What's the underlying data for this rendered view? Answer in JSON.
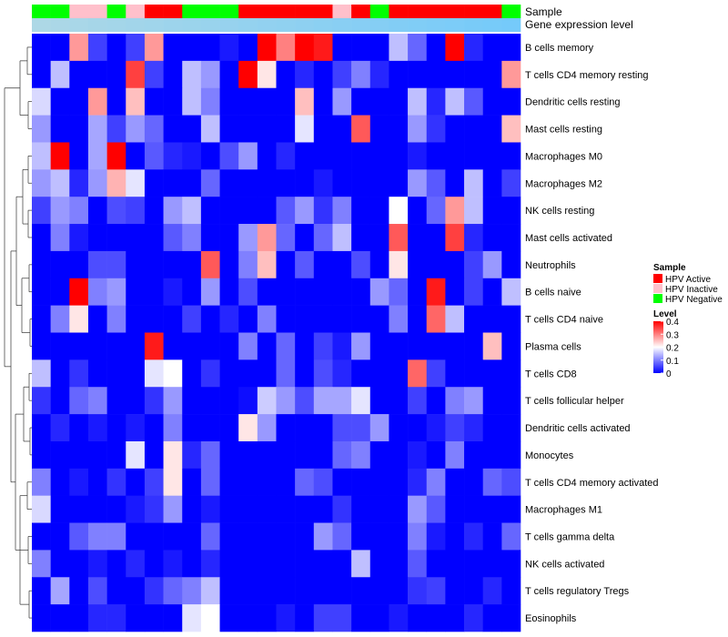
{
  "chart_data": {
    "type": "heatmap",
    "annotation_rows": [
      {
        "name": "Sample",
        "label": "Sample"
      },
      {
        "name": "Gene expression level",
        "label": "Gene expression level"
      }
    ],
    "sample_groups": [
      "Neg",
      "Neg",
      "Ina",
      "Ina",
      "Neg",
      "Ina",
      "Act",
      "Act",
      "Neg",
      "Neg",
      "Neg",
      "Act",
      "Act",
      "Act",
      "Act",
      "Act",
      "Ina",
      "Act",
      "Neg",
      "Act",
      "Act",
      "Act",
      "Act",
      "Act",
      "Act",
      "Neg"
    ],
    "sample_legend": {
      "title": "Sample",
      "entries": [
        {
          "key": "Act",
          "label": "HPV Active",
          "color": "#ff0000"
        },
        {
          "key": "Ina",
          "label": "HPV Inactive",
          "color": "#ffc0cb"
        },
        {
          "key": "Neg",
          "label": "HPV Negative",
          "color": "#00ff00"
        }
      ]
    },
    "level_legend": {
      "title": "Level",
      "ticks": [
        "0.4",
        "0.3",
        "0.2",
        "0.1",
        "0"
      ],
      "range": [
        0,
        0.4
      ]
    },
    "rows": [
      "B cells memory",
      "T cells CD4 memory resting",
      "Dendritic cells resting",
      "Mast cells resting",
      "Macrophages M0",
      "Macrophages M2",
      "NK cells resting",
      "Mast cells activated",
      "Neutrophils",
      "B cells naive",
      "T cells CD4 naive",
      "Plasma cells",
      "T cells CD8",
      "T cells follicular helper",
      "Dendritic cells activated",
      "Monocytes",
      "T cells CD4 memory activated",
      "Macrophages M1",
      "T cells gamma delta",
      "NK cells activated",
      "T cells regulatory  Tregs",
      "Eosinophils"
    ],
    "values": [
      [
        0.0,
        0.0,
        0.28,
        0.05,
        0.0,
        0.05,
        0.28,
        0.0,
        0.0,
        0.0,
        0.02,
        0.0,
        0.4,
        0.3,
        0.4,
        0.38,
        0.0,
        0.0,
        0.0,
        0.15,
        0.08,
        0.0,
        0.4,
        0.03,
        0.0,
        0.0
      ],
      [
        0.0,
        0.15,
        0.0,
        0.0,
        0.0,
        0.35,
        0.05,
        0.0,
        0.15,
        0.12,
        0.0,
        0.4,
        0.22,
        0.0,
        0.03,
        0.0,
        0.05,
        0.1,
        0.03,
        0.0,
        0.0,
        0.0,
        0.0,
        0.0,
        0.0,
        0.28
      ],
      [
        0.17,
        0.0,
        0.0,
        0.28,
        0.0,
        0.25,
        0.0,
        0.0,
        0.15,
        0.1,
        0.0,
        0.0,
        0.0,
        0.0,
        0.25,
        0.0,
        0.12,
        0.0,
        0.0,
        0.0,
        0.15,
        0.03,
        0.15,
        0.07,
        0.0,
        0.0
      ],
      [
        0.12,
        0.0,
        0.0,
        0.13,
        0.05,
        0.12,
        0.08,
        0.0,
        0.0,
        0.15,
        0.0,
        0.0,
        0.0,
        0.0,
        0.18,
        0.0,
        0.0,
        0.33,
        0.0,
        0.0,
        0.12,
        0.04,
        0.0,
        0.0,
        0.0,
        0.25
      ],
      [
        0.15,
        0.4,
        0.0,
        0.13,
        0.4,
        0.0,
        0.07,
        0.03,
        0.02,
        0.0,
        0.06,
        0.12,
        0.0,
        0.03,
        0.0,
        0.0,
        0.0,
        0.0,
        0.0,
        0.0,
        0.02,
        0.0,
        0.0,
        0.0,
        0.0,
        0.0
      ],
      [
        0.12,
        0.15,
        0.03,
        0.12,
        0.26,
        0.18,
        0.0,
        0.0,
        0.0,
        0.08,
        0.0,
        0.0,
        0.0,
        0.0,
        0.0,
        0.02,
        0.0,
        0.0,
        0.0,
        0.0,
        0.12,
        0.07,
        0.0,
        0.15,
        0.0,
        0.05
      ],
      [
        0.05,
        0.12,
        0.1,
        0.0,
        0.06,
        0.05,
        0.0,
        0.12,
        0.15,
        0.0,
        0.0,
        0.0,
        0.0,
        0.07,
        0.12,
        0.04,
        0.1,
        0.0,
        0.0,
        0.2,
        0.0,
        0.08,
        0.28,
        0.15,
        0.0,
        0.0
      ],
      [
        0.0,
        0.1,
        0.02,
        0.0,
        0.0,
        0.0,
        0.0,
        0.07,
        0.1,
        0.0,
        0.0,
        0.12,
        0.28,
        0.08,
        0.0,
        0.08,
        0.15,
        0.0,
        0.0,
        0.33,
        0.0,
        0.0,
        0.35,
        0.03,
        0.0,
        0.0
      ],
      [
        0.0,
        0.0,
        0.0,
        0.06,
        0.06,
        0.0,
        0.0,
        0.0,
        0.0,
        0.33,
        0.0,
        0.1,
        0.25,
        0.0,
        0.07,
        0.0,
        0.0,
        0.06,
        0.0,
        0.22,
        0.0,
        0.0,
        0.0,
        0.05,
        0.12,
        0.0
      ],
      [
        0.0,
        0.0,
        0.4,
        0.1,
        0.12,
        0.0,
        0.0,
        0.02,
        0.0,
        0.12,
        0.0,
        0.06,
        0.0,
        0.0,
        0.0,
        0.0,
        0.0,
        0.0,
        0.12,
        0.08,
        0.0,
        0.38,
        0.0,
        0.05,
        0.0,
        0.15
      ],
      [
        0.0,
        0.1,
        0.22,
        0.0,
        0.1,
        0.0,
        0.0,
        0.0,
        0.05,
        0.0,
        0.03,
        0.0,
        0.1,
        0.0,
        0.0,
        0.0,
        0.0,
        0.0,
        0.0,
        0.1,
        0.0,
        0.32,
        0.15,
        0.0,
        0.0,
        0.0
      ],
      [
        0.0,
        0.0,
        0.0,
        0.0,
        0.0,
        0.0,
        0.38,
        0.0,
        0.0,
        0.0,
        0.0,
        0.1,
        0.0,
        0.08,
        0.0,
        0.05,
        0.02,
        0.12,
        0.0,
        0.0,
        0.0,
        0.0,
        0.0,
        0.0,
        0.25,
        0.0
      ],
      [
        0.15,
        0.0,
        0.04,
        0.0,
        0.0,
        0.0,
        0.18,
        0.2,
        0.0,
        0.04,
        0.0,
        0.0,
        0.0,
        0.08,
        0.0,
        0.06,
        0.03,
        0.0,
        0.0,
        0.0,
        0.32,
        0.05,
        0.0,
        0.0,
        0.0,
        0.0
      ],
      [
        0.04,
        0.0,
        0.08,
        0.1,
        0.0,
        0.0,
        0.04,
        0.12,
        0.0,
        0.0,
        0.0,
        0.01,
        0.16,
        0.12,
        0.06,
        0.13,
        0.13,
        0.18,
        0.0,
        0.0,
        0.05,
        0.0,
        0.1,
        0.12,
        0.0,
        0.0
      ],
      [
        0.0,
        0.03,
        0.0,
        0.02,
        0.0,
        0.02,
        0.0,
        0.1,
        0.0,
        0.0,
        0.0,
        0.22,
        0.12,
        0.0,
        0.0,
        0.0,
        0.06,
        0.06,
        0.12,
        0.0,
        0.0,
        0.02,
        0.05,
        0.03,
        0.0,
        0.0
      ],
      [
        0.0,
        0.0,
        0.0,
        0.0,
        0.0,
        0.18,
        0.0,
        0.22,
        0.03,
        0.08,
        0.0,
        0.0,
        0.0,
        0.0,
        0.0,
        0.0,
        0.08,
        0.1,
        0.0,
        0.0,
        0.02,
        0.0,
        0.1,
        0.0,
        0.0,
        0.0
      ],
      [
        0.1,
        0.0,
        0.02,
        0.0,
        0.04,
        0.0,
        0.05,
        0.22,
        0.0,
        0.08,
        0.0,
        0.0,
        0.0,
        0.0,
        0.08,
        0.06,
        0.0,
        0.0,
        0.0,
        0.0,
        0.03,
        0.1,
        0.0,
        0.0,
        0.08,
        0.06
      ],
      [
        0.17,
        0.0,
        0.0,
        0.0,
        0.0,
        0.02,
        0.04,
        0.12,
        0.0,
        0.02,
        0.0,
        0.0,
        0.0,
        0.0,
        0.0,
        0.0,
        0.04,
        0.0,
        0.0,
        0.0,
        0.12,
        0.07,
        0.0,
        0.0,
        0.0,
        0.0
      ],
      [
        0.0,
        0.0,
        0.07,
        0.1,
        0.1,
        0.0,
        0.0,
        0.0,
        0.0,
        0.08,
        0.0,
        0.0,
        0.0,
        0.0,
        0.0,
        0.12,
        0.08,
        0.0,
        0.0,
        0.0,
        0.1,
        0.02,
        0.0,
        0.03,
        0.0,
        0.08
      ],
      [
        0.1,
        0.0,
        0.0,
        0.02,
        0.0,
        0.03,
        0.0,
        0.02,
        0.0,
        0.03,
        0.0,
        0.0,
        0.0,
        0.0,
        0.0,
        0.0,
        0.0,
        0.15,
        0.0,
        0.0,
        0.07,
        0.0,
        0.0,
        0.0,
        0.0,
        0.0
      ],
      [
        0.0,
        0.13,
        0.0,
        0.06,
        0.0,
        0.0,
        0.04,
        0.08,
        0.1,
        0.15,
        0.0,
        0.0,
        0.0,
        0.0,
        0.0,
        0.0,
        0.0,
        0.0,
        0.0,
        0.0,
        0.04,
        0.05,
        0.0,
        0.0,
        0.03,
        0.0
      ],
      [
        0.0,
        0.0,
        0.0,
        0.03,
        0.03,
        0.0,
        0.0,
        0.0,
        0.18,
        0.2,
        0.0,
        0.0,
        0.0,
        0.02,
        0.0,
        0.05,
        0.05,
        0.0,
        0.0,
        0.02,
        0.0,
        0.0,
        0.0,
        0.03,
        0.0,
        0.0
      ]
    ]
  }
}
